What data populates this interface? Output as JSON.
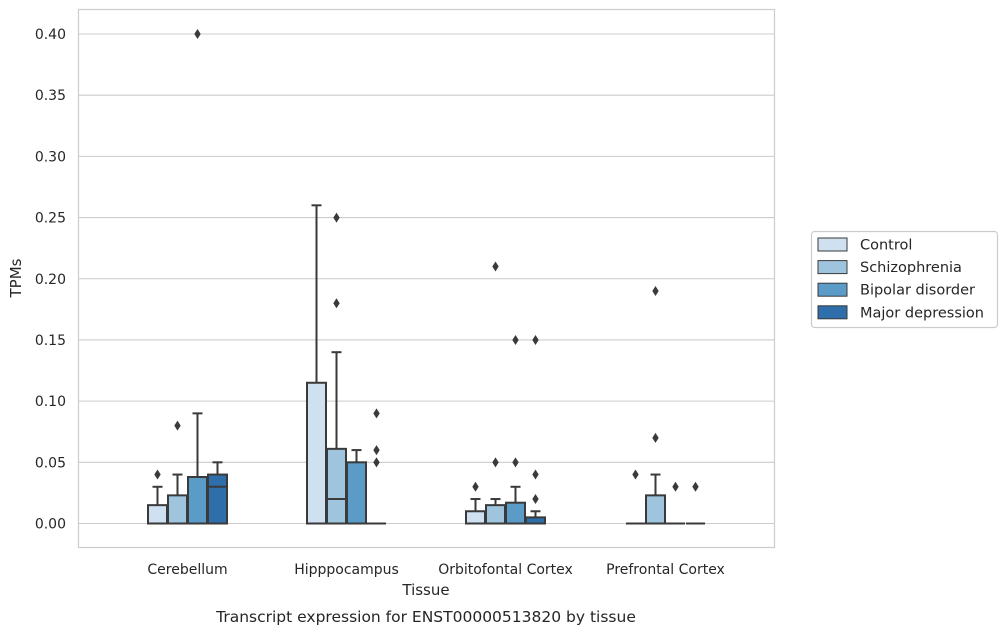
{
  "chart_data": {
    "type": "box",
    "xlabel": "Tissue",
    "ylabel": "TPMs",
    "caption": "Transcript expression for ENST00000513820 by tissue",
    "ylim": [
      -0.02,
      0.42
    ],
    "yticks": [
      "0.00",
      "0.05",
      "0.10",
      "0.15",
      "0.20",
      "0.25",
      "0.30",
      "0.35",
      "0.40"
    ],
    "ytick_values": [
      0,
      0.05,
      0.1,
      0.15,
      0.2,
      0.25,
      0.3,
      0.35,
      0.4
    ],
    "grid": "horizontal",
    "legend_position": "right",
    "categories": [
      "Cerebellum",
      "Hipppocampus",
      "Orbitofontal Cortex",
      "Prefrontal Cortex"
    ],
    "series": [
      {
        "name": "Control",
        "color": "#cfe0f0",
        "boxes": [
          {
            "q1": 0.0,
            "median": 0.0,
            "q3": 0.015,
            "whisker_low": 0.0,
            "whisker_high": 0.03,
            "outliers": [
              0.04
            ]
          },
          {
            "q1": 0.0,
            "median": 0.0,
            "q3": 0.115,
            "whisker_low": 0.0,
            "whisker_high": 0.26,
            "outliers": []
          },
          {
            "q1": 0.0,
            "median": 0.0,
            "q3": 0.01,
            "whisker_low": 0.0,
            "whisker_high": 0.02,
            "outliers": [
              0.03
            ]
          },
          {
            "q1": 0.0,
            "median": 0.0,
            "q3": 0.0,
            "whisker_low": 0.0,
            "whisker_high": 0.0,
            "outliers": [
              0.04
            ]
          }
        ]
      },
      {
        "name": "Schizophrenia",
        "color": "#9ec5dd",
        "boxes": [
          {
            "q1": 0.0,
            "median": 0.0,
            "q3": 0.023,
            "whisker_low": 0.0,
            "whisker_high": 0.04,
            "outliers": [
              0.08
            ]
          },
          {
            "q1": 0.0,
            "median": 0.02,
            "q3": 0.061,
            "whisker_low": 0.0,
            "whisker_high": 0.14,
            "outliers": [
              0.18,
              0.25
            ]
          },
          {
            "q1": 0.0,
            "median": 0.0,
            "q3": 0.015,
            "whisker_low": 0.0,
            "whisker_high": 0.02,
            "outliers": [
              0.05,
              0.21
            ]
          },
          {
            "q1": 0.0,
            "median": 0.0,
            "q3": 0.023,
            "whisker_low": 0.0,
            "whisker_high": 0.04,
            "outliers": [
              0.07,
              0.19
            ]
          }
        ]
      },
      {
        "name": "Bipolar disorder",
        "color": "#5a9bc8",
        "boxes": [
          {
            "q1": 0.0,
            "median": 0.0,
            "q3": 0.038,
            "whisker_low": 0.0,
            "whisker_high": 0.09,
            "outliers": [
              0.4
            ]
          },
          {
            "q1": 0.0,
            "median": 0.0,
            "q3": 0.05,
            "whisker_low": 0.0,
            "whisker_high": 0.06,
            "outliers": []
          },
          {
            "q1": 0.0,
            "median": 0.0,
            "q3": 0.017,
            "whisker_low": 0.0,
            "whisker_high": 0.03,
            "outliers": [
              0.05,
              0.15
            ]
          },
          {
            "q1": 0.0,
            "median": 0.0,
            "q3": 0.0,
            "whisker_low": 0.0,
            "whisker_high": 0.0,
            "outliers": [
              0.03
            ]
          }
        ]
      },
      {
        "name": "Major depression",
        "color": "#2e6fab",
        "boxes": [
          {
            "q1": 0.0,
            "median": 0.03,
            "q3": 0.04,
            "whisker_low": 0.0,
            "whisker_high": 0.05,
            "outliers": []
          },
          {
            "q1": 0.0,
            "median": 0.0,
            "q3": 0.0,
            "whisker_low": 0.0,
            "whisker_high": 0.0,
            "outliers": [
              0.05,
              0.06,
              0.09
            ]
          },
          {
            "q1": 0.0,
            "median": 0.0,
            "q3": 0.005,
            "whisker_low": 0.0,
            "whisker_high": 0.01,
            "outliers": [
              0.02,
              0.04,
              0.15
            ]
          },
          {
            "q1": 0.0,
            "median": 0.0,
            "q3": 0.0,
            "whisker_low": 0.0,
            "whisker_high": 0.0,
            "outliers": [
              0.03
            ]
          }
        ]
      }
    ]
  }
}
